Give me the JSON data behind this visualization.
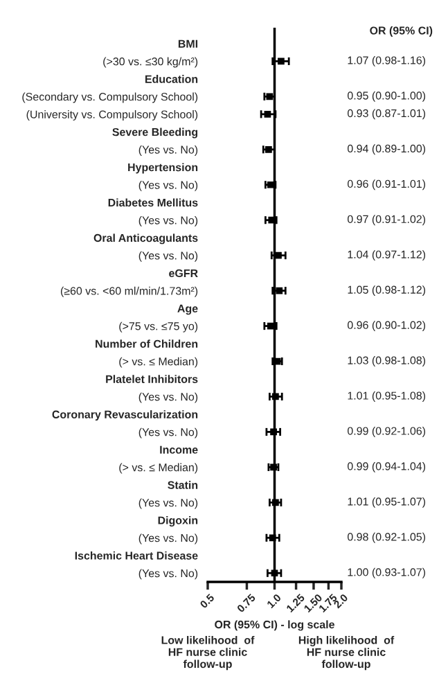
{
  "chart_data": {
    "type": "scatter",
    "xlabel": "OR (95% CI) - log scale",
    "categories": [
      "BMI",
      "(>30 vs. ≤30 kg/m²)",
      "Education",
      "(Secondary vs. Compulsory School)",
      "(University vs. Compulsory School)",
      "Severe Bleeding",
      "(Yes vs. No)",
      "Hypertension",
      "(Yes vs. No)",
      "Diabetes Mellitus",
      "(Yes vs. No)",
      "Oral Anticoagulants",
      "(Yes vs. No)",
      "eGFR",
      "(≥60 vs. <60 ml/min/1.73m²)",
      "Age",
      "(>75 vs. ≤75 yo)",
      "Number of Children",
      "(> vs. ≤ Median)",
      "Platelet Inhibitors",
      "(Yes vs. No)",
      "Coronary Revascularization",
      "(Yes vs. No)",
      "Income",
      "(> vs. ≤ Median)",
      "Statin",
      "(Yes vs. No)",
      "Digoxin",
      "(Yes vs. No)",
      "Ischemic Heart Disease",
      "(Yes vs. No)"
    ],
    "series": [
      {
        "color": "#000000",
        "values": [
          null,
          1.07,
          null,
          0.95,
          0.93,
          null,
          0.94,
          null,
          0.96,
          null,
          0.97,
          null,
          1.04,
          null,
          1.05,
          null,
          0.96,
          null,
          1.03,
          null,
          1.01,
          null,
          0.99,
          null,
          0.99,
          null,
          1.01,
          null,
          0.98,
          null,
          1.0
        ],
        "errors": [
          null,
          [
            0.98,
            1.16
          ],
          null,
          [
            0.9,
            1.0
          ],
          [
            0.87,
            1.01
          ],
          null,
          [
            0.89,
            1.0
          ],
          null,
          [
            0.91,
            1.01
          ],
          null,
          [
            0.91,
            1.02
          ],
          null,
          [
            0.97,
            1.12
          ],
          null,
          [
            0.98,
            1.12
          ],
          null,
          [
            0.9,
            1.02
          ],
          null,
          [
            0.98,
            1.08
          ],
          null,
          [
            0.95,
            1.08
          ],
          null,
          [
            0.92,
            1.06
          ],
          null,
          [
            0.94,
            1.04
          ],
          null,
          [
            0.95,
            1.07
          ],
          null,
          [
            0.92,
            1.05
          ],
          null,
          [
            0.93,
            1.07
          ]
        ],
        "value_labels": [
          null,
          "1.07 (0.98-1.16)",
          null,
          "0.95 (0.90-1.00)",
          "0.93 (0.87-1.01)",
          null,
          "0.94 (0.89-1.00)",
          null,
          "0.96 (0.91-1.01)",
          null,
          "0.97 (0.91-1.02)",
          null,
          "1.04 (0.97-1.12)",
          null,
          "1.05 (0.98-1.12)",
          null,
          "0.96 (0.90-1.02)",
          null,
          "1.03 (0.98-1.08)",
          null,
          "1.01 (0.95-1.08)",
          null,
          "0.99 (0.92-1.06)",
          null,
          "0.99 (0.94-1.04)",
          null,
          "1.01 (0.95-1.07)",
          null,
          "0.98 (0.92-1.05)",
          null,
          "1.00 (0.93-1.07)"
        ]
      }
    ],
    "log": "x",
    "xlim": [
      0.5,
      2.0
    ],
    "xticks": [
      0.5,
      0.75,
      {
        "value": 1,
        "label": "1.0"
      },
      1.25,
      {
        "value": 1.5,
        "label": "1.50"
      },
      1.75,
      {
        "value": 2,
        "label": "2.0"
      }
    ],
    "marker": "square",
    "grid": false,
    "ref_lines": [
      {
        "axis": "x",
        "value": 1,
        "color": "#000000",
        "line_style": "solid"
      }
    ],
    "orientation": "horizontal",
    "annotations": [
      "OR (95% CI)",
      "Low likelihood  of\nHF nurse clinic\nfollow-up",
      "High likelihood  of\nHF nurse clinic\nfollow-up"
    ]
  }
}
